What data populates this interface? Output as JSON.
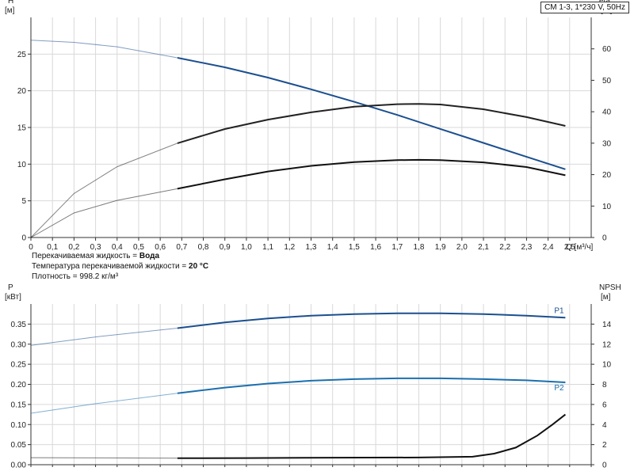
{
  "model_label": "CM 1-3, 1*230 V, 50Hz",
  "notes": {
    "liquid_label": "Перекачиваемая жидкость = ",
    "liquid_value": "Вода",
    "temp_label": "Температура перекачиваемой жидкости = ",
    "temp_value": "20 °C",
    "density": "Плотность = 998.2 кг/м³"
  },
  "chart_data": [
    {
      "type": "line",
      "xlabel": "Q [м³/ч]",
      "ylabel_left": "H",
      "ylabel_left_unit": "[м]",
      "ylabel_right": "eta",
      "ylabel_right_unit": "[%]",
      "xlim": [
        0,
        2.6
      ],
      "xticks": [
        "0",
        "0,1",
        "0,2",
        "0,3",
        "0,4",
        "0,5",
        "0,6",
        "0,7",
        "0,8",
        "0,9",
        "1,0",
        "1,1",
        "1,2",
        "1,3",
        "1,4",
        "1,5",
        "1,6",
        "1,7",
        "1,8",
        "1,9",
        "2,0",
        "2,1",
        "2,2",
        "2,3",
        "2,4",
        "2,5"
      ],
      "ylim_left": [
        0,
        30
      ],
      "yticks_left": [
        0,
        5,
        10,
        15,
        20,
        25
      ],
      "ylim_right": [
        0,
        70
      ],
      "yticks_right": [
        0,
        10,
        20,
        30,
        40,
        50,
        60
      ],
      "operating_range_start": 0.68,
      "series": [
        {
          "axis": "left",
          "color": "#1b4f8f",
          "x": [
            0,
            0.2,
            0.4,
            0.68,
            0.9,
            1.1,
            1.3,
            1.5,
            1.7,
            1.9,
            2.1,
            2.3,
            2.48
          ],
          "y": [
            26.9,
            26.6,
            26.0,
            24.5,
            23.2,
            21.8,
            20.2,
            18.5,
            16.7,
            14.8,
            12.9,
            11.0,
            9.3
          ]
        },
        {
          "axis": "right",
          "color": "#222222",
          "x": [
            0,
            0.2,
            0.4,
            0.68,
            0.9,
            1.1,
            1.3,
            1.5,
            1.7,
            1.8,
            1.9,
            2.1,
            2.3,
            2.48
          ],
          "y": [
            0,
            14.0,
            22.5,
            30.0,
            34.5,
            37.5,
            39.8,
            41.6,
            42.4,
            42.5,
            42.3,
            40.8,
            38.3,
            35.5
          ]
        },
        {
          "axis": "right",
          "color": "#111111",
          "x": [
            0,
            0.2,
            0.4,
            0.68,
            0.9,
            1.1,
            1.3,
            1.5,
            1.7,
            1.8,
            1.9,
            2.1,
            2.3,
            2.48
          ],
          "y": [
            0,
            7.8,
            11.8,
            15.5,
            18.5,
            21.0,
            22.8,
            24.0,
            24.6,
            24.7,
            24.6,
            23.9,
            22.4,
            19.8
          ]
        }
      ]
    },
    {
      "type": "line",
      "ylabel_left": "P",
      "ylabel_left_unit": "[кВт]",
      "ylabel_right": "NPSH",
      "ylabel_right_unit": "[м]",
      "xlim": [
        0,
        2.6
      ],
      "ylim_left": [
        0,
        0.4
      ],
      "yticks_left": [
        "0.00",
        "0.05",
        "0.10",
        "0.15",
        "0.20",
        "0.25",
        "0.30",
        "0.35"
      ],
      "ylim_right": [
        0,
        16
      ],
      "yticks_right": [
        0,
        2,
        4,
        6,
        8,
        10,
        12,
        14
      ],
      "operating_range_start": 0.68,
      "series": [
        {
          "name": "P1",
          "axis": "left",
          "color": "#1b4f8f",
          "x": [
            0,
            0.3,
            0.68,
            0.9,
            1.1,
            1.3,
            1.5,
            1.7,
            1.9,
            2.1,
            2.3,
            2.48
          ],
          "y": [
            0.297,
            0.318,
            0.34,
            0.354,
            0.364,
            0.371,
            0.375,
            0.377,
            0.377,
            0.375,
            0.371,
            0.366
          ]
        },
        {
          "name": "P2",
          "axis": "left",
          "color": "#1b6fae",
          "x": [
            0,
            0.3,
            0.68,
            0.9,
            1.1,
            1.3,
            1.5,
            1.7,
            1.9,
            2.1,
            2.3,
            2.48
          ],
          "y": [
            0.128,
            0.152,
            0.178,
            0.192,
            0.202,
            0.209,
            0.213,
            0.215,
            0.215,
            0.213,
            0.21,
            0.205
          ]
        },
        {
          "axis": "right",
          "color": "#111111",
          "x": [
            0,
            0.68,
            1.0,
            1.4,
            1.8,
            2.05,
            2.15,
            2.25,
            2.35,
            2.42,
            2.48
          ],
          "y": [
            0.7,
            0.65,
            0.66,
            0.7,
            0.72,
            0.8,
            1.1,
            1.7,
            2.9,
            4.0,
            5.0
          ]
        }
      ]
    }
  ]
}
